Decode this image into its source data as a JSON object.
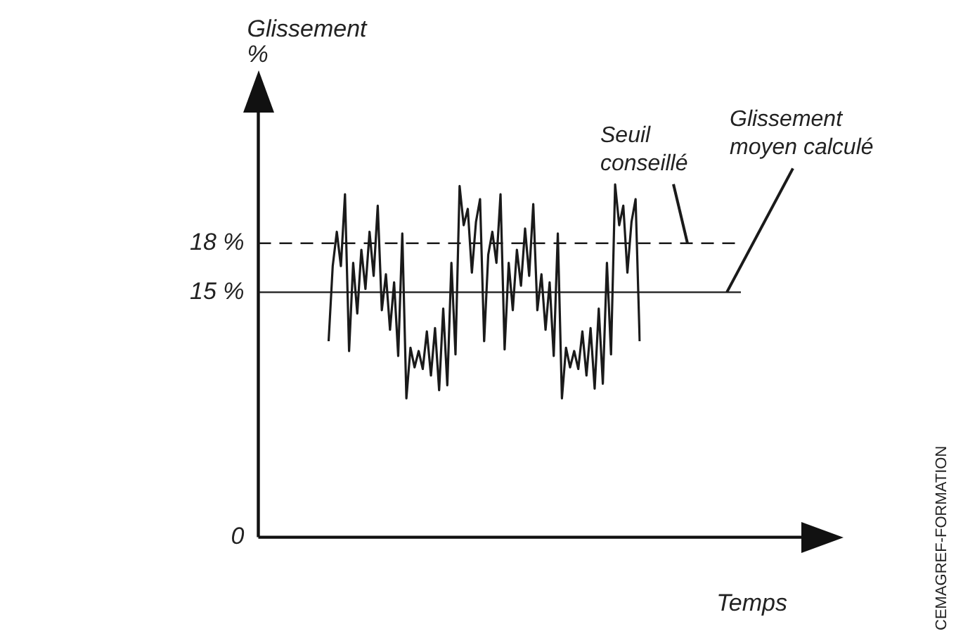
{
  "chart_data": {
    "type": "line",
    "xlabel": "Temps",
    "ylabel": "Glissement %",
    "categories": [
      null,
      null,
      null,
      null,
      null,
      null,
      null,
      null,
      null,
      null,
      null,
      null,
      null,
      null,
      null,
      null,
      null,
      null,
      null,
      null,
      null,
      null,
      null,
      null,
      null,
      null,
      null,
      null,
      null,
      null,
      null,
      null,
      null,
      null,
      null,
      null,
      null,
      null,
      null,
      null,
      null,
      null,
      null,
      null,
      null,
      null,
      null,
      null,
      null,
      null,
      null,
      null,
      null,
      null,
      null,
      null,
      null,
      null,
      null,
      null,
      null,
      null,
      null,
      null,
      null,
      null,
      null,
      null,
      null,
      null,
      null,
      null,
      null,
      null,
      null,
      null,
      null
    ],
    "series": [
      {
        "color": "#1a1a1a",
        "values": [
          12.0,
          16.6,
          18.7,
          16.6,
          21.0,
          11.4,
          16.8,
          13.7,
          17.6,
          15.2,
          18.7,
          16.0,
          20.3,
          13.9,
          16.1,
          12.7,
          15.6,
          11.1,
          18.6,
          8.5,
          11.6,
          10.4,
          11.4,
          10.3,
          12.6,
          9.9,
          12.8,
          9.0,
          14.0,
          9.3,
          16.8,
          11.2,
          21.5,
          19.1,
          20.1,
          16.2,
          19.3,
          20.7,
          12.0,
          17.3,
          18.7,
          16.8,
          21.0,
          11.5,
          16.8,
          13.9,
          17.6,
          15.4,
          18.9,
          16.0,
          20.4,
          13.9,
          16.1,
          12.7,
          15.6,
          11.1,
          18.6,
          8.5,
          11.6,
          10.4,
          11.4,
          10.3,
          12.6,
          9.9,
          12.8,
          9.1,
          14.0,
          9.4,
          16.8,
          11.2,
          21.6,
          19.1,
          20.3,
          16.2,
          19.3,
          20.7,
          12.0
        ]
      }
    ],
    "marker": "none",
    "ylim": [
      0,
      26
    ],
    "yticks": [
      0,
      {
        "value": 15,
        "label": "15 %"
      },
      {
        "value": 18,
        "label": "18 %"
      }
    ],
    "ref_lines": [
      {
        "axis": "y",
        "value": 18,
        "label": "Seuil conseillé",
        "line_style": "dashed",
        "color": "#1a1a1a"
      },
      {
        "axis": "y",
        "value": 15,
        "label": "Glissement moyen calculé",
        "line_style": "solid",
        "color": "#1a1a1a"
      }
    ],
    "annotations": [
      "CEMAGREF-FORMATION"
    ]
  }
}
